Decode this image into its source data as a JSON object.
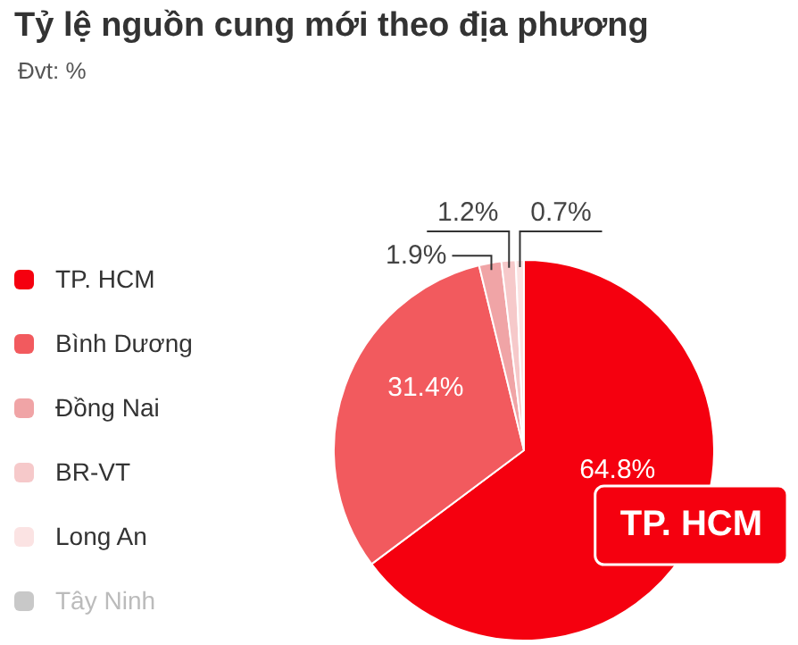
{
  "chart_data": {
    "type": "pie",
    "title": "Tỷ lệ nguồn cung mới theo địa phương",
    "subtitle": "Đvt: %",
    "categories": [
      "TP. HCM",
      "Bình Dương",
      "Đồng Nai",
      "BR-VT",
      "Long An",
      "Tây Ninh"
    ],
    "values": [
      64.8,
      31.4,
      1.9,
      1.2,
      0.7,
      0
    ],
    "value_labels": [
      "64.8%",
      "31.4%",
      "1.9%",
      "1.2%",
      "0.7%",
      null
    ],
    "colors": [
      "#f5000f",
      "#f25a5e",
      "#f0a4a6",
      "#f6c9ca",
      "#fbe3e3",
      "#c8c8c8"
    ],
    "legend": "left",
    "annotations": [
      "TP. HCM"
    ]
  }
}
